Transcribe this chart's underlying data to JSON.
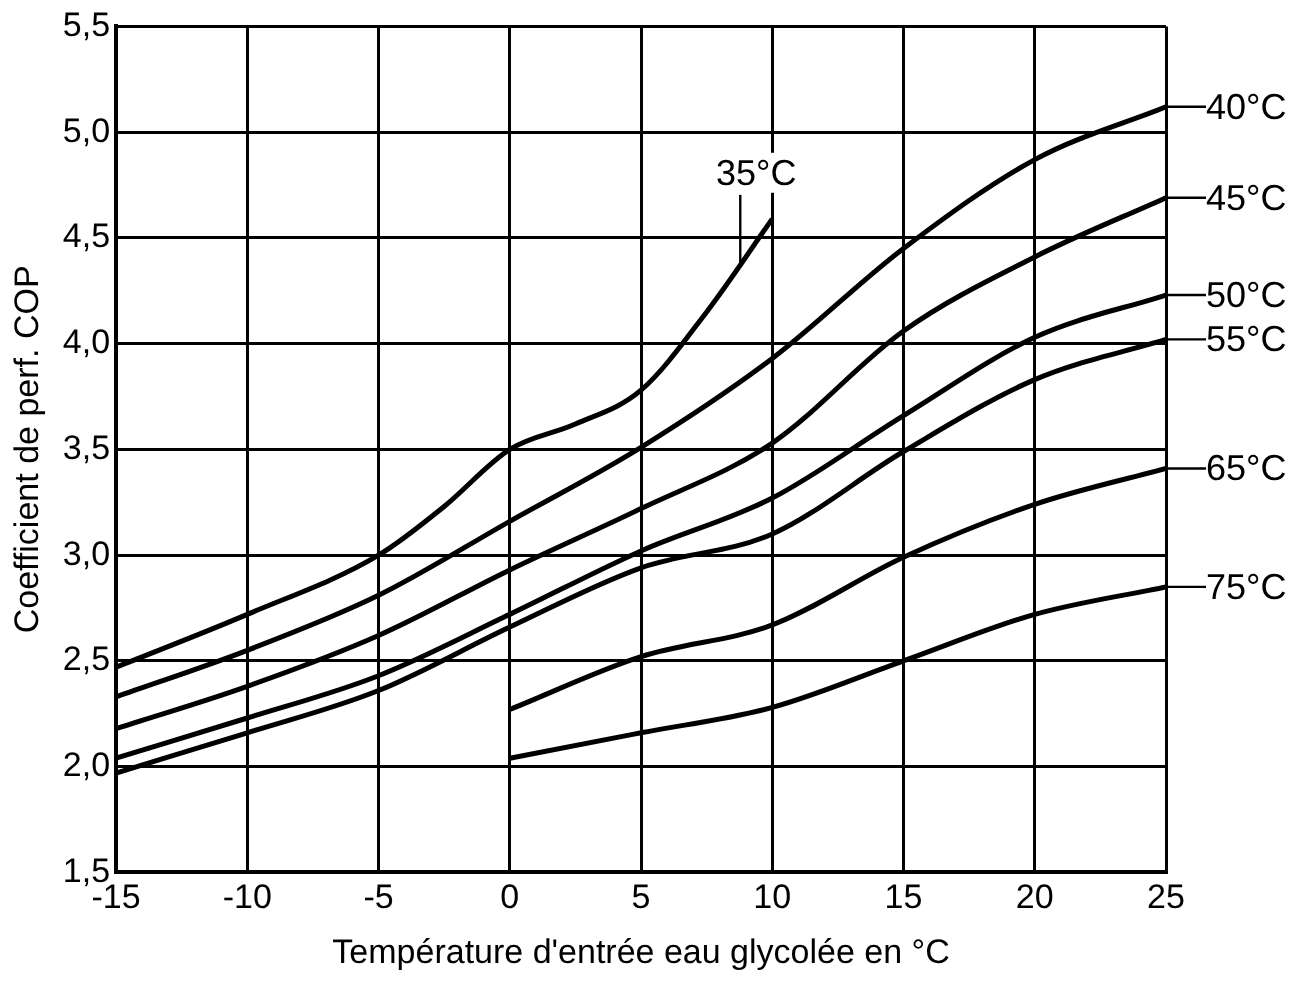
{
  "chart_data": {
    "type": "line",
    "xlabel": "Température d'entrée eau glycolée en °C",
    "ylabel": "Coefficient de perf. COP",
    "xlim": [
      -15,
      25
    ],
    "xticks": [
      -15,
      -10,
      -5,
      0,
      5,
      10,
      15,
      20,
      25
    ],
    "ylim": [
      1.5,
      5.5
    ],
    "yticks": [
      {
        "value": 1.5,
        "label": "1,5"
      },
      {
        "value": 2,
        "label": "2,0"
      },
      {
        "value": 2.5,
        "label": "2,5"
      },
      {
        "value": 3,
        "label": "3,0"
      },
      {
        "value": 3.5,
        "label": "3,5"
      },
      {
        "value": 4,
        "label": "4,0"
      },
      {
        "value": 4.5,
        "label": "4,5"
      },
      {
        "value": 5,
        "label": "5,0"
      },
      {
        "value": 5.5,
        "label": "5,5"
      }
    ],
    "grid": true,
    "legend": "right",
    "marker": "none",
    "line_style": "solid",
    "series": [
      {
        "name": "35°C",
        "color": "#000000",
        "x": [
          -15,
          -10,
          -5,
          -2.5,
          0,
          2.5,
          5,
          7.5,
          10
        ],
        "values": [
          2.47,
          2.72,
          3.0,
          3.23,
          3.5,
          3.62,
          3.78,
          4.15,
          4.59
        ]
      },
      {
        "name": "40°C",
        "color": "#000000",
        "x": [
          -15,
          -10,
          -5,
          0,
          5,
          10,
          15,
          20,
          25
        ],
        "values": [
          2.33,
          2.55,
          2.81,
          3.16,
          3.51,
          3.93,
          4.45,
          4.87,
          5.12
        ]
      },
      {
        "name": "45°C",
        "color": "#000000",
        "x": [
          -15,
          -10,
          -5,
          0,
          5,
          10,
          15,
          20,
          25
        ],
        "values": [
          2.18,
          2.38,
          2.62,
          2.93,
          3.22,
          3.53,
          4.06,
          4.41,
          4.69
        ]
      },
      {
        "name": "50°C",
        "color": "#000000",
        "x": [
          -15,
          -10,
          -5,
          0,
          5,
          10,
          15,
          20,
          25
        ],
        "values": [
          2.04,
          2.23,
          2.43,
          2.72,
          3.02,
          3.27,
          3.66,
          4.03,
          4.23
        ]
      },
      {
        "name": "55°C",
        "color": "#000000",
        "x": [
          -15,
          -10,
          -5,
          0,
          5,
          10,
          15,
          20,
          25
        ],
        "values": [
          1.97,
          2.16,
          2.36,
          2.66,
          2.94,
          3.1,
          3.49,
          3.83,
          4.02
        ]
      },
      {
        "name": "65°C",
        "color": "#000000",
        "x": [
          0,
          5,
          10,
          15,
          20,
          25
        ],
        "values": [
          2.27,
          2.52,
          2.67,
          2.99,
          3.24,
          3.41
        ]
      },
      {
        "name": "75°C",
        "color": "#000000",
        "x": [
          0,
          5,
          10,
          15,
          20,
          25
        ],
        "values": [
          2.04,
          2.16,
          2.28,
          2.5,
          2.72,
          2.85
        ]
      }
    ]
  }
}
